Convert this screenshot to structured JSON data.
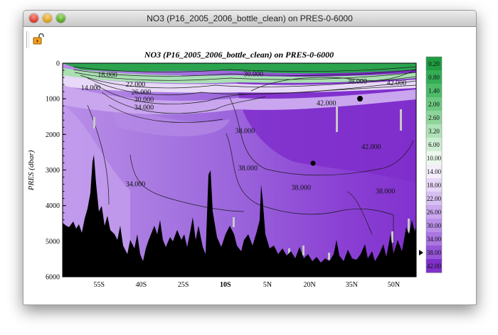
{
  "window": {
    "title": "NO3 (P16_2005_2006_bottle_clean) on PRES-0-6000"
  },
  "toolbar": {
    "lock_icon": "lock-icon"
  },
  "chart_data": {
    "type": "section-contour",
    "title": "NO3 (P16_2005_2006_bottle_clean) on PRES-0-6000",
    "ylabel": "PRES (dbar)",
    "xlabel": "",
    "x_ticks": [
      "55S",
      "40S",
      "25S",
      "10S",
      "5N",
      "20N",
      "35N",
      "50N"
    ],
    "x_range": [
      -68,
      58
    ],
    "y_ticks": [
      0,
      1000,
      2000,
      3000,
      4000,
      5000,
      6000
    ],
    "ylim": [
      0,
      6000
    ],
    "y_reversed": true,
    "contour_labels": [
      {
        "text": "18.000",
        "x": -52,
        "y": 330
      },
      {
        "text": "22.000",
        "x": -42,
        "y": 600
      },
      {
        "text": "26.000",
        "x": -40,
        "y": 820
      },
      {
        "text": "30.000",
        "x": -39,
        "y": 1030
      },
      {
        "text": "34.000",
        "x": -39,
        "y": 1250
      },
      {
        "text": "30.000",
        "x": 0,
        "y": 310
      },
      {
        "text": "38.000",
        "x": 37,
        "y": 520
      },
      {
        "text": "42.000",
        "x": 51,
        "y": 560
      },
      {
        "text": "42.000",
        "x": 26,
        "y": 1130
      },
      {
        "text": "38.000",
        "x": -3,
        "y": 1900
      },
      {
        "text": "42.000",
        "x": 42,
        "y": 2350
      },
      {
        "text": "38.000",
        "x": -2,
        "y": 2950
      },
      {
        "text": "34.000",
        "x": -42,
        "y": 3400
      },
      {
        "text": "38.000",
        "x": 17,
        "y": 3500
      },
      {
        "text": "38.000",
        "x": 47,
        "y": 3600
      },
      {
        "text": "14.000",
        "x": -58,
        "y": 700
      }
    ],
    "colorbar": {
      "labels": [
        "0.20",
        "0.80",
        "1.40",
        "2.00",
        "2.60",
        "3.20",
        "6.00",
        "10.00",
        "14.00",
        "18.00",
        "22.00",
        "26.00",
        "30.00",
        "34.00",
        "38.00",
        "42.00"
      ],
      "colors": [
        "#1f9d42",
        "#34ad55",
        "#4dbb6a",
        "#6cc881",
        "#8dd59b",
        "#aee2b6",
        "#cdeed2",
        "#ecf8ee",
        "#f4eefb",
        "#e6d7f7",
        "#d7bff2",
        "#c9a8ee",
        "#ba90e9",
        "#aa76e2",
        "#9656d8",
        "#7f2fcb"
      ]
    }
  }
}
